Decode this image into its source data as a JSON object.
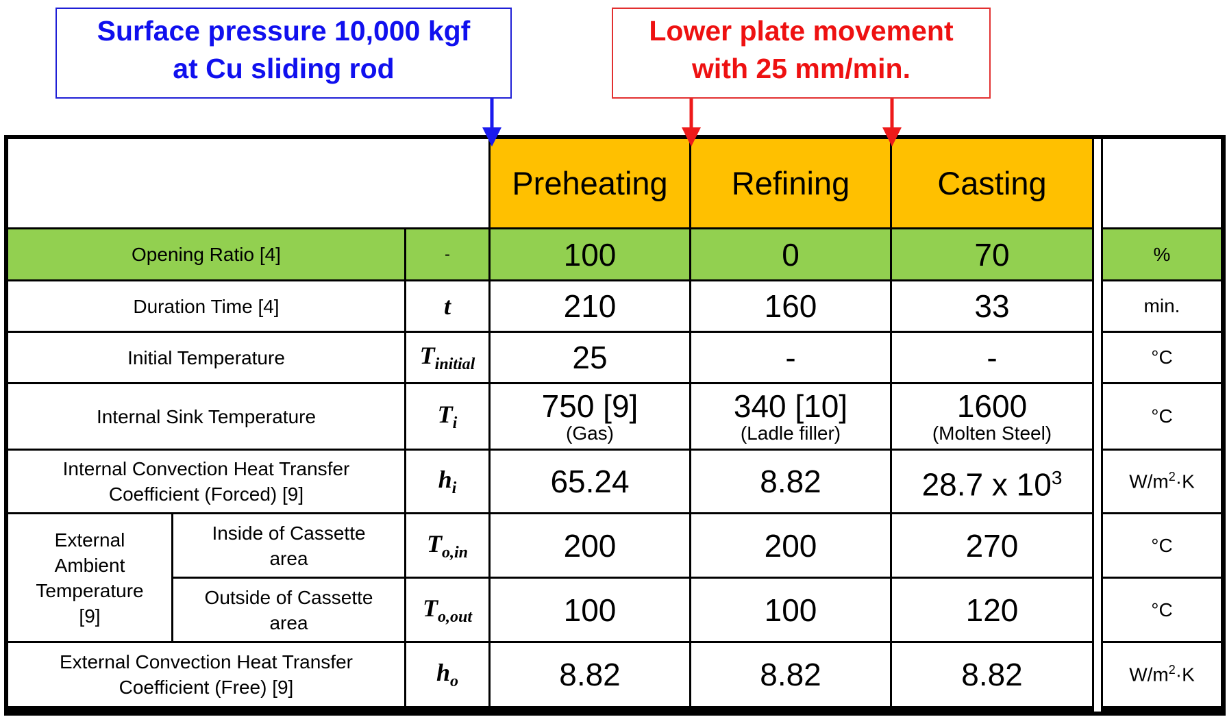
{
  "callouts": {
    "blue": {
      "line1": "Surface pressure 10,000 kgf",
      "line2": "at Cu sliding rod"
    },
    "red": {
      "line1": "Lower plate movement",
      "line2": "with 25 mm/min."
    }
  },
  "columns": {
    "preheating": "Preheating",
    "refining": "Refining",
    "casting": "Casting"
  },
  "rows": {
    "opening_ratio": {
      "label": "Opening Ratio [4]",
      "symbol": "-",
      "preheating": "100",
      "refining": "0",
      "casting": "70",
      "unit": "%"
    },
    "duration_time": {
      "label": "Duration Time [4]",
      "symbol": "t",
      "preheating": "210",
      "refining": "160",
      "casting": "33",
      "unit": "min."
    },
    "initial_temperature": {
      "label": "Initial Temperature",
      "symbol": "T",
      "symbol_sub": "initial",
      "preheating": "25",
      "refining": "-",
      "casting": "-",
      "unit": "°C"
    },
    "internal_sink_temperature": {
      "label": "Internal Sink Temperature",
      "symbol": "T",
      "symbol_sub": "i",
      "preheating": "750 [9]",
      "preheating_note": "(Gas)",
      "refining": "340 [10]",
      "refining_note": "(Ladle filler)",
      "casting": "1600",
      "casting_note": "(Molten Steel)",
      "unit": "°C"
    },
    "internal_convection": {
      "label_line1": "Internal Convection Heat Transfer",
      "label_line2": "Coefficient (Forced) [9]",
      "symbol": "h",
      "symbol_sub": "i",
      "preheating": "65.24",
      "refining": "8.82",
      "casting": "28.7 x 10",
      "casting_exp": "3",
      "unit": "W/m",
      "unit_exp": "2",
      "unit_tail": "·K"
    },
    "external_ambient": {
      "group_label_lines": [
        "External",
        "Ambient",
        "Temperature",
        "[9]"
      ],
      "inside": {
        "label_line1": "Inside of Cassette",
        "label_line2": "area",
        "symbol": "T",
        "symbol_sub": "o,in",
        "preheating": "200",
        "refining": "200",
        "casting": "270",
        "unit": "°C"
      },
      "outside": {
        "label_line1": "Outside of Cassette",
        "label_line2": "area",
        "symbol": "T",
        "symbol_sub": "o,out",
        "preheating": "100",
        "refining": "100",
        "casting": "120",
        "unit": "°C"
      }
    },
    "external_convection": {
      "label_line1": "External Convection Heat Transfer",
      "label_line2": "Coefficient (Free) [9]",
      "symbol": "h",
      "symbol_sub": "o",
      "preheating": "8.82",
      "refining": "8.82",
      "casting": "8.82",
      "unit": "W/m",
      "unit_exp": "2",
      "unit_tail": "·K"
    }
  },
  "colors": {
    "header_fill": "#ffc000",
    "opening_ratio_fill": "#92d050",
    "blue_callout": "#1010ee",
    "red_callout": "#ee1111"
  }
}
